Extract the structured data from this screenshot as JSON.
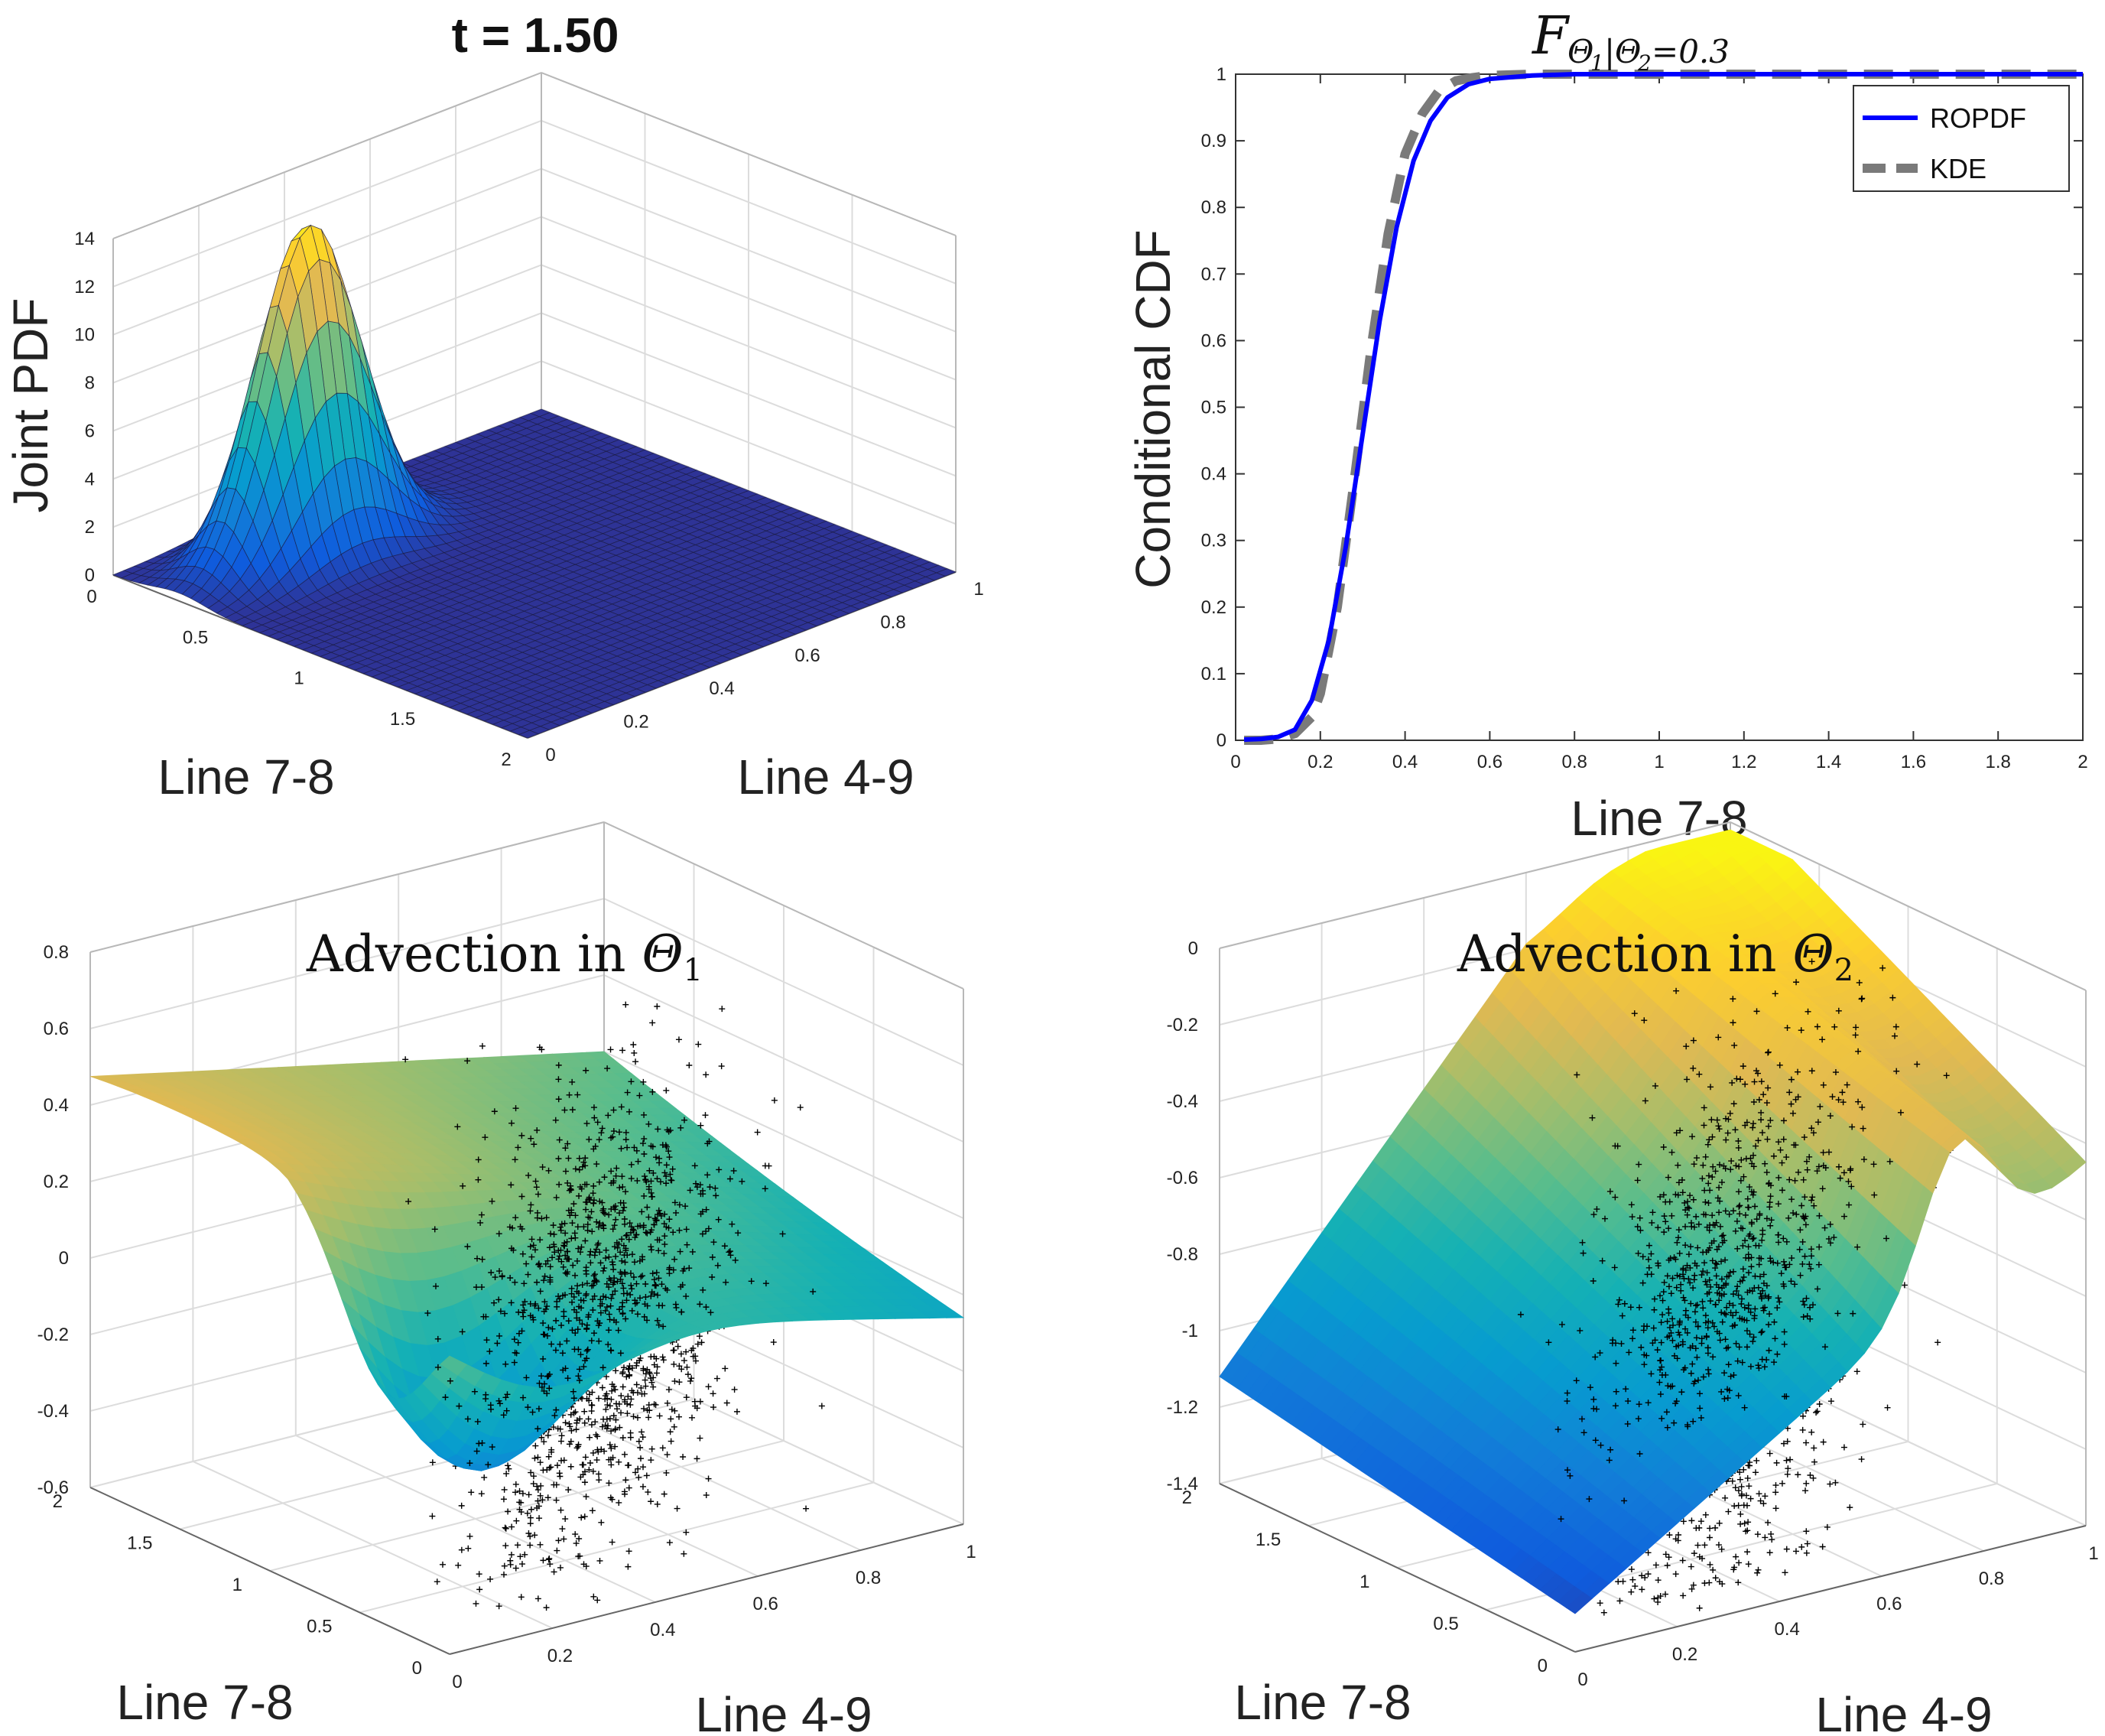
{
  "chart_data": [
    {
      "panel": "top-left",
      "type": "surface",
      "title": "t = 1.50",
      "zlabel": "Joint PDF",
      "xlabel": "Line 7-8",
      "ylabel": "Line 4-9",
      "xlim": [
        0,
        2
      ],
      "ylim": [
        0,
        1
      ],
      "zlim": [
        0,
        14
      ],
      "xticks": [
        "0",
        "0.5",
        "1",
        "1.5",
        "2"
      ],
      "yticks": [
        "0",
        "0.2",
        "0.4",
        "0.6",
        "0.8",
        "1"
      ],
      "zticks": [
        "0",
        "2",
        "4",
        "6",
        "8",
        "10",
        "12",
        "14"
      ],
      "peak": {
        "x": 0.32,
        "y": 0.3,
        "z": 13.7
      },
      "spread": {
        "x": 0.12,
        "y": 0.11
      },
      "colormap": "parula"
    },
    {
      "panel": "top-right",
      "type": "line",
      "title_math": {
        "base": "F",
        "sub1": "Θ",
        "sub1_index": "1",
        "bar": "|",
        "sub2": "Θ",
        "sub2_index": "2",
        "cond": "=0.3"
      },
      "xlabel": "Line 7-8",
      "ylabel": "Conditional CDF",
      "xlim": [
        0,
        2
      ],
      "ylim": [
        0,
        1
      ],
      "xticks": [
        "0",
        "0.2",
        "0.4",
        "0.6",
        "0.8",
        "1",
        "1.2",
        "1.4",
        "1.6",
        "1.8",
        "2"
      ],
      "yticks": [
        "0",
        "0.1",
        "0.2",
        "0.3",
        "0.4",
        "0.5",
        "0.6",
        "0.7",
        "0.8",
        "0.9",
        "1"
      ],
      "legend_position": "top-right",
      "series": [
        {
          "name": "ROPDF",
          "color": "#0000ff",
          "style": "solid",
          "x": [
            0.02,
            0.06,
            0.1,
            0.14,
            0.18,
            0.22,
            0.26,
            0.3,
            0.34,
            0.38,
            0.42,
            0.46,
            0.5,
            0.55,
            0.6,
            0.7,
            0.8,
            1.0,
            1.5,
            2.0
          ],
          "y": [
            0.001,
            0.002,
            0.005,
            0.016,
            0.06,
            0.15,
            0.29,
            0.46,
            0.63,
            0.77,
            0.87,
            0.93,
            0.965,
            0.985,
            0.993,
            0.998,
            1.0,
            1.0,
            1.0,
            1.0
          ]
        },
        {
          "name": "KDE",
          "color": "#7a7a7a",
          "style": "dashed",
          "x": [
            0.02,
            0.06,
            0.1,
            0.14,
            0.18,
            0.2,
            0.24,
            0.28,
            0.32,
            0.36,
            0.4,
            0.44,
            0.48,
            0.52,
            0.56,
            0.6,
            0.7,
            0.8,
            1.0,
            1.5,
            2.0
          ],
          "y": [
            0.0,
            0.0,
            0.002,
            0.01,
            0.035,
            0.07,
            0.2,
            0.39,
            0.59,
            0.76,
            0.88,
            0.94,
            0.975,
            0.99,
            0.995,
            0.998,
            1.0,
            1.0,
            1.0,
            1.0,
            1.0
          ]
        }
      ]
    },
    {
      "panel": "bottom-left",
      "type": "surface-scatter",
      "title_math": {
        "text": "Advection in ",
        "symbol": "Θ",
        "index": "1"
      },
      "xlabel": "Line 7-8",
      "ylabel": "Line 4-9",
      "xlim": [
        0,
        2
      ],
      "ylim": [
        0,
        1
      ],
      "zlim": [
        -0.6,
        0.8
      ],
      "xticks": [
        "0",
        "0.5",
        "1",
        "1.5",
        "2"
      ],
      "yticks": [
        "0",
        "0.2",
        "0.4",
        "0.6",
        "0.8",
        "1"
      ],
      "zticks": [
        "-0.6",
        "-0.4",
        "-0.2",
        "0",
        "0.2",
        "0.4",
        "0.6",
        "0.8"
      ],
      "colormap": "parula",
      "scatter_marker": "+"
    },
    {
      "panel": "bottom-right",
      "type": "surface-scatter",
      "title_math": {
        "text": "Advection in ",
        "symbol": "Θ",
        "index": "2"
      },
      "xlabel": "Line 7-8",
      "ylabel": "Line 4-9",
      "xlim": [
        0,
        2
      ],
      "ylim": [
        0,
        1
      ],
      "zlim": [
        -1.4,
        0
      ],
      "xticks": [
        "0",
        "0.5",
        "1",
        "1.5",
        "2"
      ],
      "yticks": [
        "0",
        "0.2",
        "0.4",
        "0.6",
        "0.8",
        "1"
      ],
      "zticks": [
        "-1.4",
        "-1.2",
        "-1",
        "-0.8",
        "-0.6",
        "-0.4",
        "-0.2",
        "0"
      ],
      "colormap": "parula",
      "scatter_marker": "+"
    }
  ]
}
